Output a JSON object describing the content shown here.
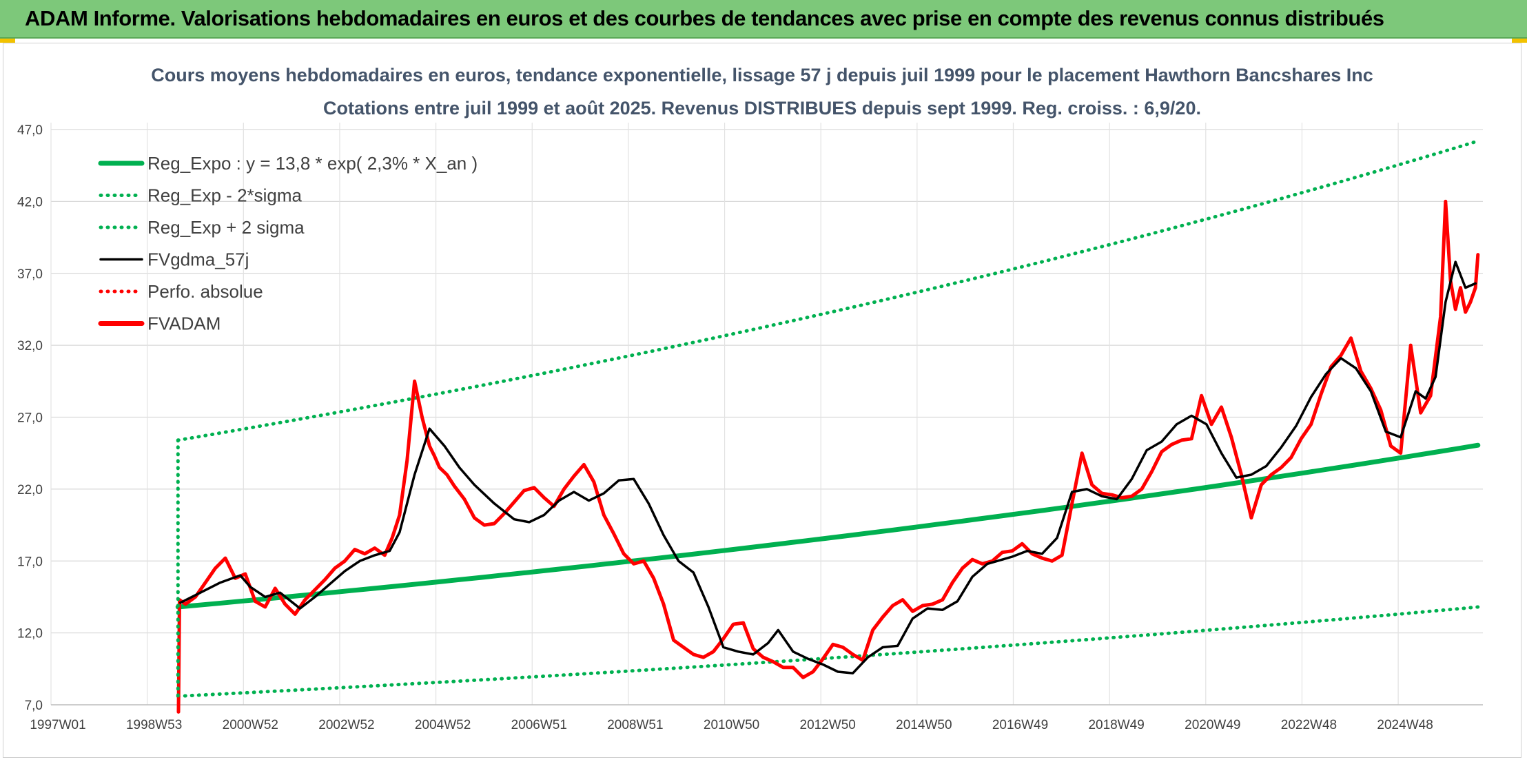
{
  "header": {
    "title": "ADAM Informe. Valorisations hebdomadaires en euros et des courbes de tendances avec prise en compte des revenus connus distribués"
  },
  "colors": {
    "banner": "#7dc87a",
    "trend": "#00b050",
    "sigma": "#00b050",
    "fvgdma": "#000000",
    "fvadam": "#ff0000",
    "perfo": "#ff0000"
  },
  "chart_data": {
    "type": "line",
    "title_line1": "Cours moyens hebdomadaires en euros, tendance exponentielle, lissage 57 j depuis juil 1999 pour le placement Hawthorn Bancshares Inc",
    "title_line2": "Cotations entre juil 1999 et août 2025. Revenus DISTRIBUES depuis sept 1999. Reg. croiss. : 6,9/20.",
    "ylim": [
      7.0,
      47.0
    ],
    "yticks": [
      "7,0",
      "12,0",
      "17,0",
      "22,0",
      "27,0",
      "32,0",
      "37,0",
      "42,0",
      "47,0"
    ],
    "xticks": [
      "1997W01",
      "1998W53",
      "2000W52",
      "2002W52",
      "2004W52",
      "2006W51",
      "2008W51",
      "2010W50",
      "2012W50",
      "2014W50",
      "2016W49",
      "2018W49",
      "2020W49",
      "2022W48",
      "2024W48"
    ],
    "grid": true,
    "legend_position": "top-left",
    "legend": [
      {
        "label": "Reg_Expo : y = 13,8 * exp( 2,3% *  X_an )",
        "style": "solid-thick",
        "color": "#00b050"
      },
      {
        "label": "Reg_Exp - 2*sigma",
        "style": "dotted",
        "color": "#00b050"
      },
      {
        "label": "Reg_Exp + 2 sigma",
        "style": "dotted",
        "color": "#00b050"
      },
      {
        "label": "FVgdma_57j",
        "style": "solid",
        "color": "#000000"
      },
      {
        "label": "Perfo. absolue",
        "style": "dotted",
        "color": "#ff0000"
      },
      {
        "label": "FVADAM",
        "style": "solid-thick",
        "color": "#ff0000"
      }
    ],
    "x_range": [
      1997.0,
      2025.75
    ],
    "series": [
      {
        "name": "Reg_Expo : y = 13,8 * exp( 2,3% *  X_an )",
        "x": [
          1999.55,
          2025.65
        ],
        "y": [
          13.8,
          25.05
        ],
        "model": "exponential"
      },
      {
        "name": "Reg_Exp - 2*sigma",
        "x": [
          1999.55,
          2025.65
        ],
        "y": [
          7.6,
          13.8
        ],
        "model": "exponential"
      },
      {
        "name": "Reg_Exp + 2 sigma",
        "x": [
          1999.55,
          2025.65
        ],
        "y": [
          25.4,
          46.2
        ],
        "model": "exponential"
      },
      {
        "name": "FVgdma_57j",
        "x": [
          1999.6,
          2000.0,
          2000.4,
          2000.8,
          2001.0,
          2001.3,
          2001.6,
          2002.0,
          2002.3,
          2002.6,
          2002.9,
          2003.2,
          2003.5,
          2003.8,
          2004.0,
          2004.3,
          2004.6,
          2004.9,
          2005.2,
          2005.5,
          2005.9,
          2006.3,
          2006.6,
          2006.9,
          2007.2,
          2007.5,
          2007.8,
          2008.1,
          2008.4,
          2008.7,
          2009.0,
          2009.3,
          2009.6,
          2009.9,
          2010.2,
          2010.5,
          2010.8,
          2011.1,
          2011.4,
          2011.6,
          2011.9,
          2012.2,
          2012.5,
          2012.8,
          2013.1,
          2013.4,
          2013.7,
          2014.0,
          2014.3,
          2014.6,
          2014.9,
          2015.2,
          2015.5,
          2015.8,
          2016.1,
          2016.3,
          2016.6,
          2016.9,
          2017.2,
          2017.5,
          2017.8,
          2018.1,
          2018.4,
          2018.7,
          2019.0,
          2019.3,
          2019.6,
          2019.9,
          2020.2,
          2020.5,
          2020.8,
          2021.1,
          2021.4,
          2021.7,
          2022.0,
          2022.3,
          2022.6,
          2022.9,
          2023.2,
          2023.5,
          2023.8,
          2024.1,
          2024.4,
          2024.6,
          2024.8,
          2025.0,
          2025.2,
          2025.4,
          2025.6
        ],
        "y": [
          14.1,
          14.8,
          15.5,
          16.0,
          15.2,
          14.5,
          14.8,
          13.7,
          14.5,
          15.4,
          16.3,
          17.0,
          17.4,
          17.7,
          19.0,
          23.0,
          26.2,
          25.0,
          23.5,
          22.3,
          21.0,
          19.9,
          19.7,
          20.2,
          21.2,
          21.8,
          21.2,
          21.7,
          22.6,
          22.7,
          21.0,
          18.8,
          17.0,
          16.2,
          13.8,
          11.0,
          10.7,
          10.5,
          11.3,
          12.2,
          10.7,
          10.2,
          9.8,
          9.3,
          9.2,
          10.3,
          11.0,
          11.1,
          13.0,
          13.7,
          13.6,
          14.2,
          15.9,
          16.8,
          17.1,
          17.3,
          17.7,
          17.5,
          18.6,
          21.8,
          22.0,
          21.5,
          21.3,
          22.7,
          24.7,
          25.3,
          26.5,
          27.1,
          26.5,
          24.5,
          22.8,
          23.0,
          23.6,
          24.9,
          26.4,
          28.4,
          30.0,
          31.1,
          30.4,
          28.8,
          26.0,
          25.6,
          28.8,
          28.3,
          29.8,
          35.0,
          37.8,
          36.0,
          36.3
        ]
      },
      {
        "name": "FVADAM",
        "x": [
          1999.56,
          1999.58,
          1999.7,
          1999.9,
          2000.1,
          2000.3,
          2000.5,
          2000.7,
          2000.9,
          2001.1,
          2001.3,
          2001.5,
          2001.7,
          2001.9,
          2002.1,
          2002.3,
          2002.5,
          2002.7,
          2002.9,
          2003.1,
          2003.3,
          2003.5,
          2003.7,
          2003.85,
          2004.0,
          2004.15,
          2004.3,
          2004.45,
          2004.6,
          2004.7,
          2004.8,
          2004.95,
          2005.1,
          2005.3,
          2005.5,
          2005.7,
          2005.9,
          2006.1,
          2006.3,
          2006.5,
          2006.7,
          2006.9,
          2007.1,
          2007.3,
          2007.5,
          2007.7,
          2007.9,
          2008.1,
          2008.3,
          2008.5,
          2008.7,
          2008.9,
          2009.1,
          2009.3,
          2009.5,
          2009.7,
          2009.9,
          2010.1,
          2010.3,
          2010.5,
          2010.7,
          2010.9,
          2011.1,
          2011.3,
          2011.5,
          2011.7,
          2011.9,
          2012.1,
          2012.3,
          2012.5,
          2012.7,
          2012.9,
          2013.1,
          2013.3,
          2013.5,
          2013.7,
          2013.9,
          2014.1,
          2014.3,
          2014.5,
          2014.7,
          2014.9,
          2015.1,
          2015.3,
          2015.5,
          2015.7,
          2015.9,
          2016.1,
          2016.3,
          2016.5,
          2016.7,
          2016.9,
          2017.1,
          2017.3,
          2017.5,
          2017.7,
          2017.9,
          2018.1,
          2018.3,
          2018.5,
          2018.7,
          2018.9,
          2019.1,
          2019.3,
          2019.5,
          2019.7,
          2019.9,
          2020.1,
          2020.3,
          2020.5,
          2020.7,
          2020.9,
          2021.1,
          2021.3,
          2021.5,
          2021.7,
          2021.9,
          2022.1,
          2022.3,
          2022.5,
          2022.7,
          2022.9,
          2023.1,
          2023.3,
          2023.5,
          2023.7,
          2023.9,
          2024.1,
          2024.3,
          2024.5,
          2024.7,
          2024.9,
          2025.0,
          2025.1,
          2025.2,
          2025.3,
          2025.4,
          2025.5,
          2025.6,
          2025.65
        ],
        "y": [
          6.5,
          14.3,
          14.0,
          14.5,
          15.5,
          16.5,
          17.2,
          15.8,
          16.1,
          14.2,
          13.8,
          15.1,
          14.0,
          13.3,
          14.3,
          15.0,
          15.7,
          16.5,
          17.0,
          17.8,
          17.5,
          17.9,
          17.4,
          18.6,
          20.2,
          24.0,
          29.5,
          27.0,
          25.0,
          24.3,
          23.5,
          23.0,
          22.2,
          21.3,
          20.0,
          19.5,
          19.6,
          20.3,
          21.1,
          21.9,
          22.1,
          21.4,
          20.8,
          22.0,
          22.9,
          23.7,
          22.5,
          20.2,
          18.9,
          17.5,
          16.8,
          17.0,
          15.8,
          14.0,
          11.5,
          11.0,
          10.5,
          10.3,
          10.7,
          11.6,
          12.6,
          12.7,
          10.9,
          10.3,
          10.0,
          9.6,
          9.6,
          8.9,
          9.3,
          10.2,
          11.2,
          11.0,
          10.5,
          10.1,
          12.2,
          13.1,
          13.9,
          14.3,
          13.5,
          13.9,
          14.0,
          14.3,
          15.5,
          16.5,
          17.1,
          16.8,
          17.0,
          17.6,
          17.7,
          18.2,
          17.5,
          17.2,
          17.0,
          17.4,
          21.0,
          24.5,
          22.3,
          21.7,
          21.6,
          21.4,
          21.5,
          22.0,
          23.2,
          24.6,
          25.1,
          25.4,
          25.5,
          28.5,
          26.5,
          27.7,
          25.6,
          23.0,
          20.0,
          22.3,
          23.0,
          23.5,
          24.2,
          25.5,
          26.5,
          28.6,
          30.5,
          31.3,
          32.5,
          30.2,
          29.0,
          27.5,
          25.0,
          24.5,
          32.0,
          27.3,
          28.5,
          34.0,
          42.0,
          36.5,
          34.5,
          36.0,
          34.3,
          35.0,
          36.0,
          38.3
        ]
      }
    ]
  }
}
